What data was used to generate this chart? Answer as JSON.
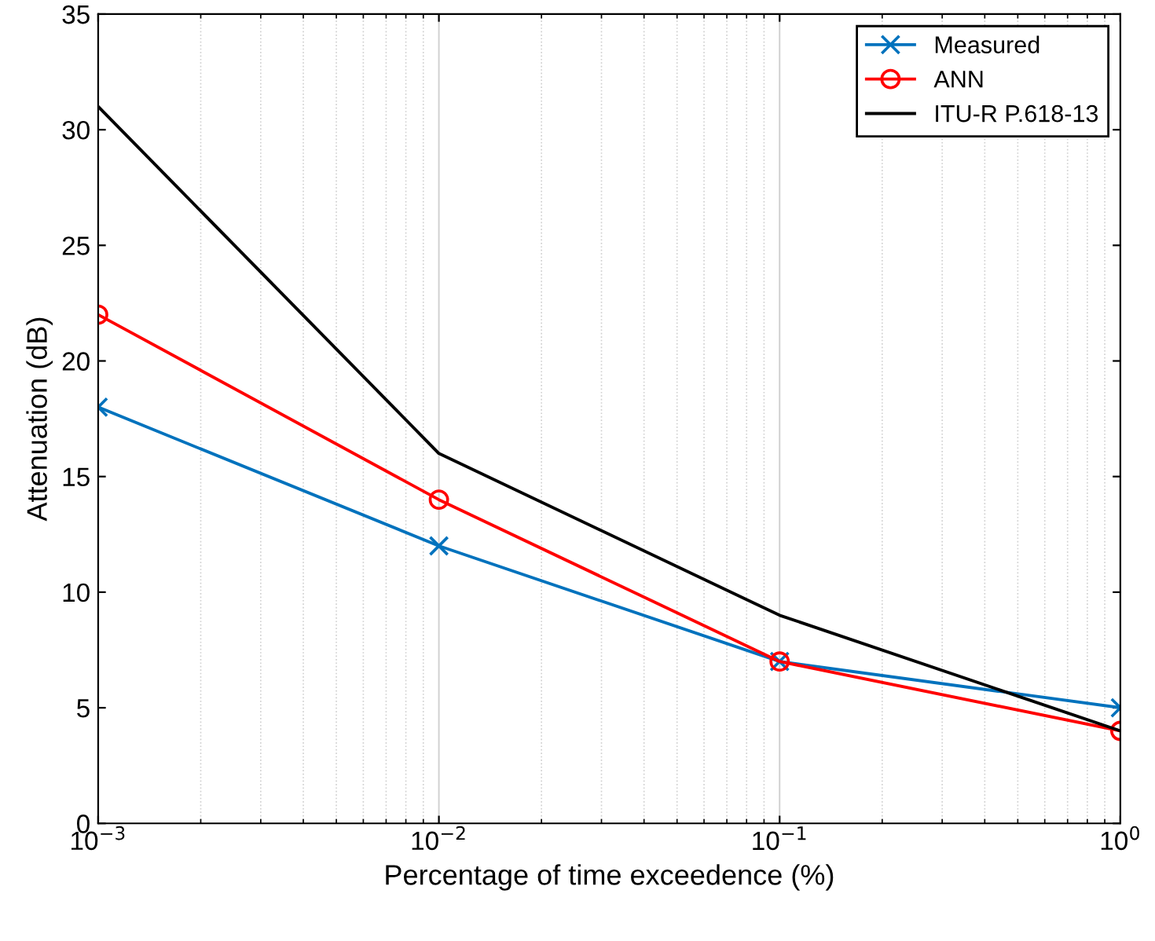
{
  "chart_data": {
    "type": "line",
    "xlabel": "Percentage of time exceedence (%)",
    "ylabel": "Attenuation (dB)",
    "x": [
      0.001,
      0.01,
      0.1,
      1
    ],
    "series": [
      {
        "name": "Measured",
        "color": "#0072bd",
        "marker": "cross",
        "values": [
          18,
          12,
          7,
          5
        ]
      },
      {
        "name": "ANN",
        "color": "#ff0000",
        "marker": "circle",
        "values": [
          22,
          14,
          7,
          4
        ]
      },
      {
        "name": "ITU-R P.618-13",
        "color": "#000000",
        "marker": "none",
        "values": [
          31,
          16,
          9,
          4
        ]
      }
    ],
    "log": "x",
    "xlim": [
      0.001,
      1
    ],
    "xticks": [
      {
        "value": 0.001,
        "label": "10$^{−3}$"
      },
      {
        "value": 0.01,
        "label": "10$^{−2}$"
      },
      {
        "value": 0.1,
        "label": "10$^{−1}$"
      },
      {
        "value": 1,
        "label": "10$^{0}$"
      }
    ],
    "ylim": [
      0,
      35
    ],
    "yticks": [
      0,
      5,
      10,
      15,
      20,
      25,
      30,
      35
    ],
    "grid": "x",
    "legend": "top right",
    "line_style": "solid"
  }
}
